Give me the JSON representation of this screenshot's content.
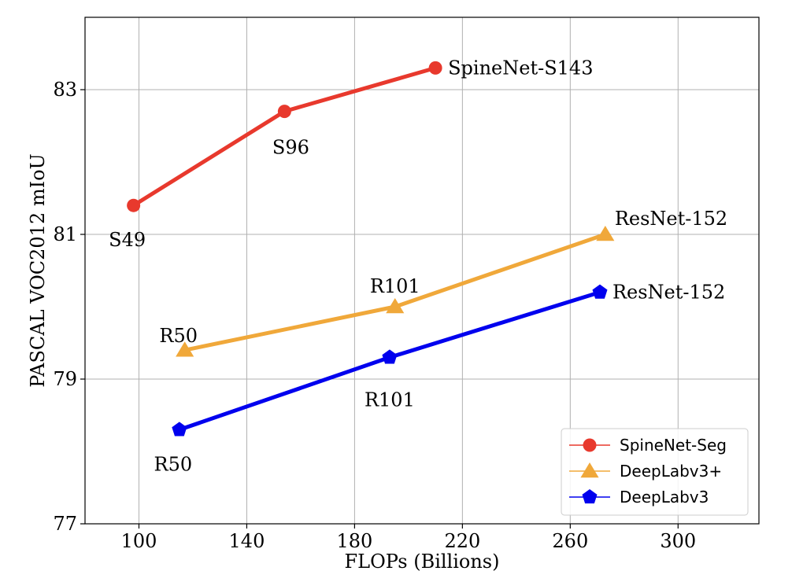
{
  "chart_data": {
    "type": "line",
    "xlabel": "FLOPs (Billions)",
    "ylabel": "PASCAL VOC2012 mIoU",
    "xlim": [
      80,
      330
    ],
    "ylim": [
      77,
      84
    ],
    "xticks": [
      100,
      140,
      180,
      220,
      260,
      300
    ],
    "yticks": [
      77,
      79,
      81,
      83
    ],
    "grid": true,
    "legend_position": "lower-right",
    "series": [
      {
        "name": "SpineNet-Seg",
        "color": "#e8392d",
        "marker": "circle",
        "points": [
          {
            "x": 98,
            "y": 81.4,
            "label": "S49"
          },
          {
            "x": 154,
            "y": 82.7,
            "label": "S96"
          },
          {
            "x": 210,
            "y": 83.3,
            "label": "SpineNet-S143"
          }
        ]
      },
      {
        "name": "DeepLabv3+",
        "color": "#f0a83a",
        "marker": "triangle",
        "points": [
          {
            "x": 117,
            "y": 79.4,
            "label": "R50"
          },
          {
            "x": 195,
            "y": 80.0,
            "label": "R101"
          },
          {
            "x": 273,
            "y": 81.0,
            "label": "ResNet-152"
          }
        ]
      },
      {
        "name": "DeepLabv3",
        "color": "#0000ee",
        "marker": "pentagon",
        "points": [
          {
            "x": 115,
            "y": 78.3,
            "label": "R50"
          },
          {
            "x": 193,
            "y": 79.3,
            "label": "R101"
          },
          {
            "x": 271,
            "y": 80.2,
            "label": "ResNet-152"
          }
        ]
      }
    ]
  }
}
